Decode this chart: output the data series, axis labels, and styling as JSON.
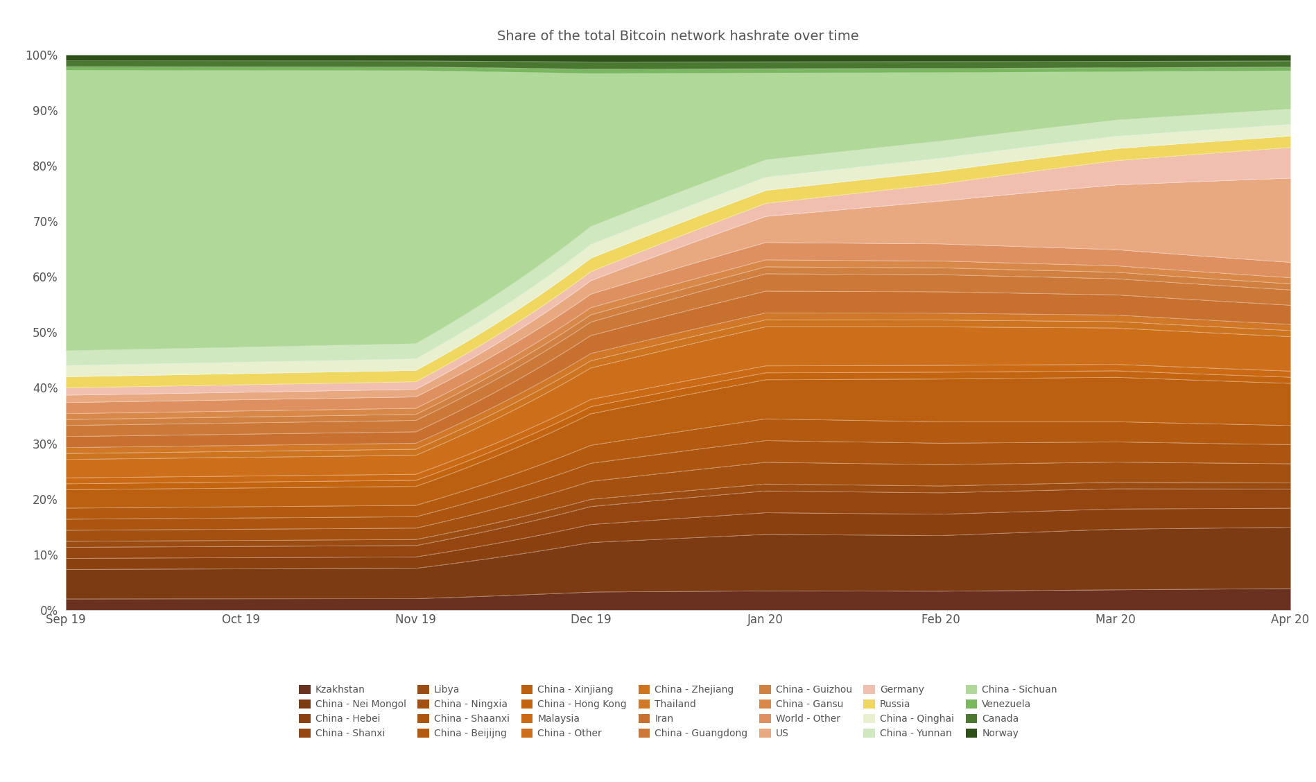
{
  "title": "Share of the total Bitcoin network hashrate over time",
  "title_fontsize": 14,
  "background_color": "#ffffff",
  "x_labels": [
    "Sep 19",
    "Oct 19",
    "Nov 19",
    "Dec 19",
    "Jan 20",
    "Feb 20",
    "Mar 20",
    "Apr 20"
  ],
  "x_ticks_pos": [
    0,
    4,
    8,
    12,
    16,
    20,
    24,
    28
  ],
  "series_bottom_to_top": [
    {
      "name": "Kzakhstan",
      "color": "#6b3120",
      "values": [
        1.5,
        1.5,
        1.5,
        2.0,
        2.2,
        2.2,
        2.5,
        2.8
      ]
    },
    {
      "name": "China - Nei Mongol",
      "color": "#7c3b12",
      "values": [
        4.0,
        4.0,
        4.0,
        5.5,
        6.5,
        6.5,
        7.5,
        8.0
      ]
    },
    {
      "name": "China - Hebei",
      "color": "#8b4010",
      "values": [
        1.5,
        1.5,
        1.5,
        2.0,
        2.5,
        2.5,
        2.5,
        2.5
      ]
    },
    {
      "name": "China - Shanxi",
      "color": "#944510",
      "values": [
        1.5,
        1.5,
        1.5,
        2.0,
        2.5,
        2.5,
        2.5,
        2.5
      ]
    },
    {
      "name": "Libya",
      "color": "#9b4c12",
      "values": [
        0.8,
        0.8,
        0.8,
        0.8,
        0.8,
        0.8,
        0.8,
        0.8
      ]
    },
    {
      "name": "China - Ningxia",
      "color": "#a35010",
      "values": [
        1.5,
        1.5,
        1.5,
        2.0,
        2.5,
        2.5,
        2.5,
        2.5
      ]
    },
    {
      "name": "China - Shaanxi",
      "color": "#ab5510",
      "values": [
        1.5,
        1.5,
        1.5,
        2.0,
        2.5,
        2.5,
        2.5,
        2.5
      ]
    },
    {
      "name": "China - Beijijng",
      "color": "#b35a10",
      "values": [
        1.5,
        1.5,
        1.5,
        2.0,
        2.5,
        2.5,
        2.5,
        2.5
      ]
    },
    {
      "name": "China - Xinjiang",
      "color": "#bb6010",
      "values": [
        2.5,
        2.5,
        2.5,
        3.5,
        4.5,
        5.0,
        5.5,
        5.5
      ]
    },
    {
      "name": "China - Hong Kong",
      "color": "#c36510",
      "values": [
        0.8,
        0.8,
        0.8,
        0.8,
        0.8,
        0.8,
        0.8,
        0.8
      ]
    },
    {
      "name": "Malaysia",
      "color": "#cb6a15",
      "values": [
        0.8,
        0.8,
        0.8,
        0.8,
        0.8,
        0.8,
        0.8,
        0.8
      ]
    },
    {
      "name": "China - Other",
      "color": "#cc6e1a",
      "values": [
        2.5,
        2.5,
        2.5,
        3.5,
        4.5,
        4.5,
        4.5,
        4.5
      ]
    },
    {
      "name": "China - Zhejiang",
      "color": "#cd7420",
      "values": [
        0.8,
        0.8,
        0.8,
        0.8,
        0.8,
        0.8,
        0.8,
        0.8
      ]
    },
    {
      "name": "Thailand",
      "color": "#d07828",
      "values": [
        0.8,
        0.8,
        0.8,
        0.8,
        0.8,
        0.8,
        0.8,
        0.8
      ]
    },
    {
      "name": "Iran",
      "color": "#c87030",
      "values": [
        1.5,
        1.5,
        1.5,
        2.0,
        2.5,
        2.5,
        2.5,
        2.5
      ]
    },
    {
      "name": "China - Guangdong",
      "color": "#cc7838",
      "values": [
        1.5,
        1.5,
        1.5,
        1.5,
        2.0,
        2.0,
        2.0,
        2.0
      ]
    },
    {
      "name": "China - Guizhou",
      "color": "#d08040",
      "values": [
        0.8,
        0.8,
        0.8,
        0.8,
        0.8,
        0.8,
        0.8,
        0.8
      ]
    },
    {
      "name": "China - Gansu",
      "color": "#d88848",
      "values": [
        0.8,
        0.8,
        0.8,
        0.8,
        0.8,
        0.8,
        0.8,
        0.8
      ]
    },
    {
      "name": "World - Other",
      "color": "#de9060",
      "values": [
        1.5,
        1.5,
        1.5,
        1.5,
        2.0,
        2.0,
        2.0,
        2.0
      ]
    },
    {
      "name": "US",
      "color": "#e8a880",
      "values": [
        1.0,
        1.0,
        1.0,
        1.5,
        3.0,
        5.0,
        8.0,
        11.0
      ]
    },
    {
      "name": "Germany",
      "color": "#f0bfb0",
      "values": [
        1.0,
        1.0,
        1.0,
        1.0,
        1.5,
        2.0,
        3.0,
        4.0
      ]
    },
    {
      "name": "Russia",
      "color": "#f0d860",
      "values": [
        1.5,
        1.5,
        1.5,
        1.5,
        1.5,
        1.5,
        1.5,
        1.5
      ]
    },
    {
      "name": "China - Qinghai",
      "color": "#e8f0d0",
      "values": [
        1.5,
        1.5,
        1.5,
        1.5,
        1.5,
        1.5,
        1.5,
        1.5
      ]
    },
    {
      "name": "China - Yunnan",
      "color": "#d0e8c0",
      "values": [
        2.0,
        2.0,
        2.0,
        2.0,
        2.0,
        2.0,
        2.0,
        2.0
      ]
    },
    {
      "name": "China - Sichuan",
      "color": "#b0d898",
      "values": [
        38.0,
        37.0,
        36.0,
        17.0,
        10.0,
        8.0,
        6.0,
        5.0
      ]
    },
    {
      "name": "Venezuela",
      "color": "#7ab860",
      "values": [
        0.5,
        0.5,
        0.5,
        0.5,
        0.5,
        0.5,
        0.5,
        0.5
      ]
    },
    {
      "name": "Canada",
      "color": "#4a7830",
      "values": [
        0.8,
        0.8,
        0.8,
        0.8,
        0.8,
        0.8,
        0.8,
        0.8
      ]
    },
    {
      "name": "Norway",
      "color": "#2d5018",
      "values": [
        0.8,
        0.8,
        0.8,
        0.8,
        0.8,
        0.8,
        0.8,
        0.8
      ]
    }
  ],
  "legend_order": [
    "Kzakhstan",
    "China - Nei Mongol",
    "China - Hebei",
    "China - Shanxi",
    "Libya",
    "China - Ningxia",
    "China - Shaanxi",
    "China - Beijijng",
    "China - Xinjiang",
    "China - Hong Kong",
    "Malaysia",
    "China - Other",
    "China - Zhejiang",
    "Thailand",
    "Iran",
    "China - Guangdong",
    "China - Guizhou",
    "China - Gansu",
    "World - Other",
    "US",
    "Germany",
    "Russia",
    "China - Qinghai",
    "China - Yunnan",
    "China - Sichuan",
    "Venezuela",
    "Canada",
    "Norway"
  ],
  "ylim": [
    0,
    1.0
  ],
  "yticks": [
    0.0,
    0.1,
    0.2,
    0.3,
    0.4,
    0.5,
    0.6,
    0.7,
    0.8,
    0.9,
    1.0
  ]
}
